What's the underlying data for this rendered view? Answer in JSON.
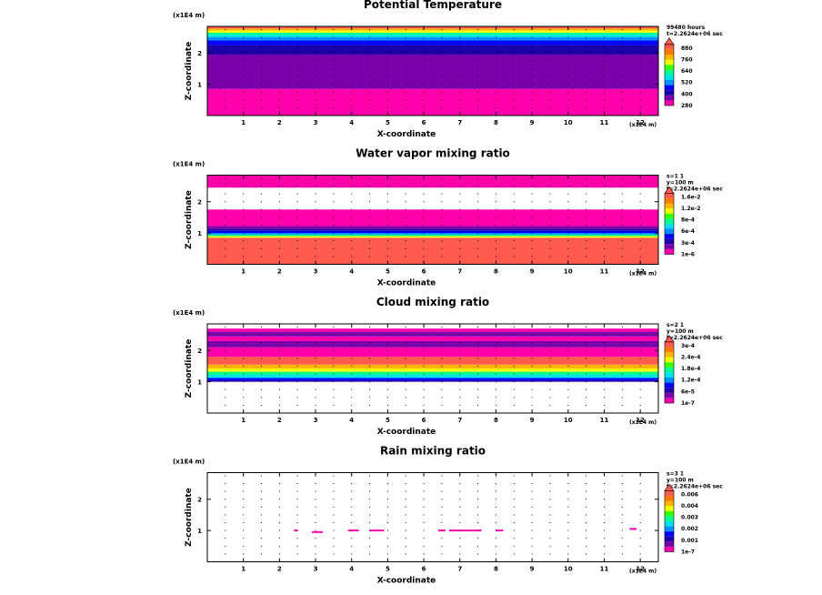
{
  "chart_data": [
    {
      "type": "heatmap",
      "title": "Potential Temperature",
      "xlabel": "X-coordinate",
      "ylabel": "Z-coordinate",
      "x_unit": "(x1E4 m)",
      "z_unit": "(x1E4 m)",
      "xlim": [
        0,
        12.5
      ],
      "zlim": [
        0,
        2.85
      ],
      "x_ticks": [
        "1",
        "2",
        "3",
        "4",
        "5",
        "6",
        "7",
        "8",
        "9",
        "10",
        "11",
        "12"
      ],
      "z_ticks": [
        "1",
        "2"
      ],
      "info": [
        "99480 hours",
        "t=2.2624e+06 sec"
      ],
      "colorbar": {
        "labels": [
          "880",
          "760",
          "640",
          "520",
          "400",
          "280"
        ],
        "colors": [
          "#ff00aa",
          "#7a00aa",
          "#1c00a8",
          "#0000ff",
          "#0090ff",
          "#00e0e8",
          "#00ff90",
          "#38ff00",
          "#f0ff00",
          "#ffb400",
          "#ff7800",
          "#ff5a50"
        ]
      },
      "bands": [
        {
          "z0": 0,
          "z1": 0.85,
          "color": "#ff00aa"
        },
        {
          "z0": 0.85,
          "z1": 1.95,
          "color": "#7a00aa"
        },
        {
          "z0": 1.95,
          "z1": 2.25,
          "color": "#1c00a8"
        },
        {
          "z0": 2.25,
          "z1": 2.4,
          "color": "#0000ff"
        },
        {
          "z0": 2.4,
          "z1": 2.5,
          "color": "#0090ff"
        },
        {
          "z0": 2.5,
          "z1": 2.58,
          "color": "#00e0e8"
        },
        {
          "z0": 2.58,
          "z1": 2.65,
          "color": "#00ff90"
        },
        {
          "z0": 2.65,
          "z1": 2.72,
          "color": "#f0ff00"
        },
        {
          "z0": 2.72,
          "z1": 2.78,
          "color": "#ffb400"
        },
        {
          "z0": 2.78,
          "z1": 2.85,
          "color": "#ff5a50"
        }
      ],
      "blobs": []
    },
    {
      "type": "heatmap",
      "title": "Water vapor mixing ratio",
      "xlabel": "X-coordinate",
      "ylabel": "Z-coordinate",
      "x_unit": "(x1E4 m)",
      "z_unit": "(x1E4 m)",
      "xlim": [
        0,
        12.5
      ],
      "zlim": [
        0,
        2.85
      ],
      "x_ticks": [
        "1",
        "2",
        "3",
        "4",
        "5",
        "6",
        "7",
        "8",
        "9",
        "10",
        "11",
        "12"
      ],
      "z_ticks": [
        "1",
        "2"
      ],
      "info": [
        "s=1 1",
        "y=100 m",
        "t=2.2624e+06 sec"
      ],
      "colorbar": {
        "labels": [
          "1.6e-2",
          "1.2e-2",
          "8e-4",
          "6e-4",
          "3e-4",
          "1e-6"
        ],
        "colors": [
          "#ff00aa",
          "#7a00aa",
          "#1c00a8",
          "#0000ff",
          "#0090ff",
          "#00e0e8",
          "#00ff90",
          "#38ff00",
          "#f0ff00",
          "#ffb400",
          "#ff7800",
          "#ff5a50"
        ]
      },
      "bands": [
        {
          "z0": 0,
          "z1": 0.85,
          "color": "#ff5a50"
        },
        {
          "z0": 0.85,
          "z1": 0.9,
          "color": "#f0ff00"
        },
        {
          "z0": 0.9,
          "z1": 0.95,
          "color": "#00ff90"
        },
        {
          "z0": 0.95,
          "z1": 1.0,
          "color": "#0090ff"
        },
        {
          "z0": 1.0,
          "z1": 1.07,
          "color": "#0000ff"
        },
        {
          "z0": 1.07,
          "z1": 1.13,
          "color": "#1c00a8"
        },
        {
          "z0": 1.13,
          "z1": 1.22,
          "color": "#7a00aa"
        },
        {
          "z0": 1.22,
          "z1": 1.75,
          "color": "#ff00aa"
        },
        {
          "z0": 2.45,
          "z1": 2.85,
          "color": "#ff00aa"
        }
      ],
      "blobs": []
    },
    {
      "type": "heatmap",
      "title": "Cloud mixing ratio",
      "xlabel": "X-coordinate",
      "ylabel": "Z-coordinate",
      "x_unit": "(x1E4 m)",
      "z_unit": "(x1E4 m)",
      "xlim": [
        0,
        12.5
      ],
      "zlim": [
        0,
        2.85
      ],
      "x_ticks": [
        "1",
        "2",
        "3",
        "4",
        "5",
        "6",
        "7",
        "8",
        "9",
        "10",
        "11",
        "12"
      ],
      "z_ticks": [
        "1",
        "2"
      ],
      "info": [
        "s=2 1",
        "y=100 m",
        "t=2.2624e+06 sec"
      ],
      "colorbar": {
        "labels": [
          "3e-4",
          "2.4e-4",
          "1.8e-4",
          "1.2e-4",
          "6e-5",
          "1e-7"
        ],
        "colors": [
          "#ff00aa",
          "#7a00aa",
          "#1c00a8",
          "#0000ff",
          "#0090ff",
          "#00e0e8",
          "#00ff90",
          "#38ff00",
          "#f0ff00",
          "#ffb400",
          "#ff7800",
          "#ff5a50"
        ]
      },
      "bands": [
        {
          "z0": 1.0,
          "z1": 1.05,
          "color": "#1c00a8"
        },
        {
          "z0": 1.05,
          "z1": 1.12,
          "color": "#0000ff"
        },
        {
          "z0": 1.12,
          "z1": 1.22,
          "color": "#00e0e8"
        },
        {
          "z0": 1.22,
          "z1": 1.32,
          "color": "#00ff90"
        },
        {
          "z0": 1.32,
          "z1": 1.42,
          "color": "#f0ff00"
        },
        {
          "z0": 1.42,
          "z1": 1.55,
          "color": "#ffb400"
        },
        {
          "z0": 1.55,
          "z1": 1.8,
          "color": "#ff5a50"
        },
        {
          "z0": 1.8,
          "z1": 2.1,
          "color": "#ff00aa"
        },
        {
          "z0": 2.1,
          "z1": 2.3,
          "color": "#7a00aa"
        },
        {
          "z0": 2.3,
          "z1": 2.45,
          "color": "#ff00aa"
        },
        {
          "z0": 2.45,
          "z1": 2.6,
          "color": "#7a00aa"
        },
        {
          "z0": 2.6,
          "z1": 2.7,
          "color": "#ff00aa"
        }
      ],
      "blobs": []
    },
    {
      "type": "heatmap",
      "title": "Rain mixing ratio",
      "xlabel": "X-coordinate",
      "ylabel": "Z-coordinate",
      "x_unit": "(x1E4 m)",
      "z_unit": "(x1E4 m)",
      "xlim": [
        0,
        12.5
      ],
      "zlim": [
        0,
        2.85
      ],
      "x_ticks": [
        "1",
        "2",
        "3",
        "4",
        "5",
        "6",
        "7",
        "8",
        "9",
        "10",
        "11",
        "12"
      ],
      "z_ticks": [
        "1",
        "2"
      ],
      "info": [
        "s=3 1",
        "y=100 m",
        "t=2.2624e+06 sec"
      ],
      "colorbar": {
        "labels": [
          "0.006",
          "0.004",
          "0.003",
          "0.002",
          "0.001",
          "1e-7"
        ],
        "colors": [
          "#ff00aa",
          "#7a00aa",
          "#1c00a8",
          "#0000ff",
          "#0090ff",
          "#00e0e8",
          "#00ff90",
          "#38ff00",
          "#f0ff00",
          "#ffb400",
          "#ff7800",
          "#ff5a50"
        ]
      },
      "bands": [],
      "blobs": [
        {
          "x0": 2.9,
          "x1": 3.2,
          "z": 0.95,
          "color": "#ff00aa"
        },
        {
          "x0": 2.4,
          "x1": 2.5,
          "z": 1.0,
          "color": "#ff00aa"
        },
        {
          "x0": 3.9,
          "x1": 4.2,
          "z": 1.0,
          "color": "#ff00aa"
        },
        {
          "x0": 4.5,
          "x1": 4.9,
          "z": 1.0,
          "color": "#ff00aa"
        },
        {
          "x0": 6.4,
          "x1": 6.6,
          "z": 1.0,
          "color": "#ff00aa"
        },
        {
          "x0": 6.7,
          "x1": 7.6,
          "z": 1.0,
          "color": "#ff00aa"
        },
        {
          "x0": 8.0,
          "x1": 8.2,
          "z": 1.0,
          "color": "#ff00aa"
        },
        {
          "x0": 11.7,
          "x1": 11.9,
          "z": 1.05,
          "color": "#ff00aa"
        }
      ]
    }
  ]
}
